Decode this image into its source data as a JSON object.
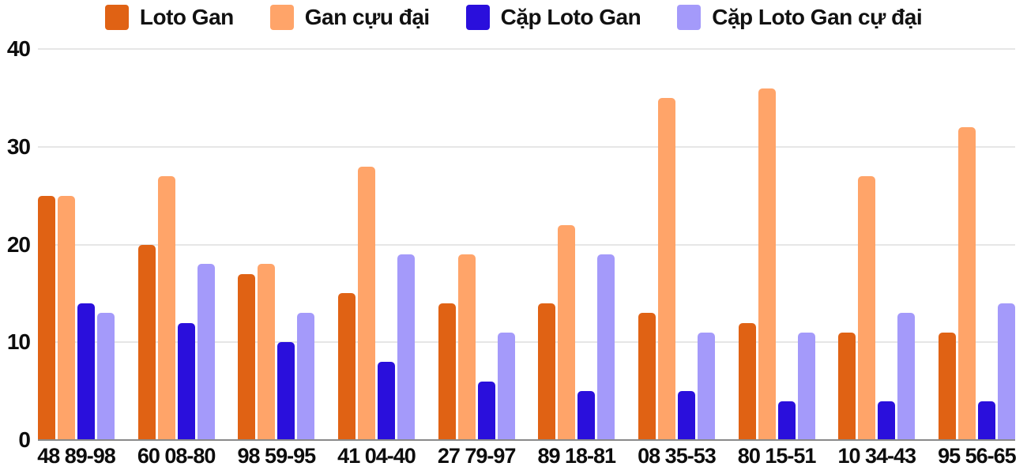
{
  "chart_data": {
    "type": "bar",
    "title": "",
    "categories": [
      "48 89-98",
      "60 08-80",
      "98 59-95",
      "41 04-40",
      "27 79-97",
      "89 18-81",
      "08 35-53",
      "80 15-51",
      "10 34-43",
      "95 56-65"
    ],
    "series": [
      {
        "name": "Loto Gan",
        "color": "#e06214",
        "values": [
          25,
          20,
          17,
          15,
          14,
          14,
          13,
          12,
          11,
          11
        ]
      },
      {
        "name": "Gan cựu đại",
        "color": "#ffa469",
        "values": [
          25,
          27,
          18,
          28,
          19,
          22,
          35,
          36,
          27,
          32
        ]
      },
      {
        "name": "Cặp Loto Gan",
        "color": "#2a0fdc",
        "values": [
          14,
          12,
          10,
          8,
          6,
          5,
          5,
          4,
          4,
          4
        ]
      },
      {
        "name": "Cặp Loto Gan cự đại",
        "color": "#a49afa",
        "values": [
          13,
          18,
          13,
          19,
          11,
          19,
          11,
          11,
          13,
          14
        ]
      }
    ],
    "xlabel": "",
    "ylabel": "",
    "ylim": [
      0,
      40
    ],
    "yticks": [
      0,
      10,
      20,
      30,
      40
    ],
    "grid": true,
    "legend_position": "top",
    "colors": {
      "grid": "#e6e6e6",
      "axis": "#8a8a8a",
      "text": "#0d0d0d",
      "background": "#ffffff"
    }
  }
}
